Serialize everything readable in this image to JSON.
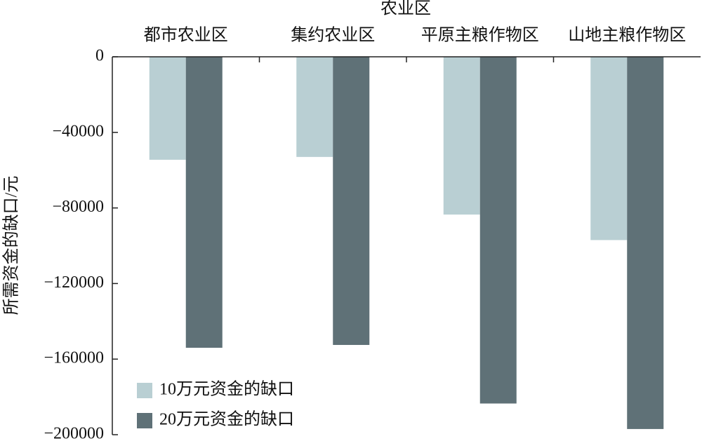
{
  "chart_data": {
    "type": "bar",
    "x_label": "农业区",
    "y_label": "所需资金的缺口/元",
    "categories": [
      "都市农业区",
      "集约农业区",
      "平原主粮作物区",
      "山地主粮作物区"
    ],
    "series": [
      {
        "name": "10万元资金的缺口",
        "color": "#b9cfd3",
        "values": [
          -54500,
          -53000,
          -83500,
          -97000
        ]
      },
      {
        "name": "20万元资金的缺口",
        "color": "#5f7177",
        "values": [
          -154000,
          -152500,
          -183500,
          -197000
        ]
      }
    ],
    "ylim": [
      -200000,
      0
    ],
    "yticks": [
      0,
      {
        "value": -40000,
        "label": "−40000"
      },
      {
        "value": -80000,
        "label": "−80000"
      },
      {
        "value": -120000,
        "label": "−120000"
      },
      {
        "value": -160000,
        "label": "−160000"
      },
      {
        "value": -200000,
        "label": "−200000"
      }
    ],
    "legend": "lower left"
  }
}
